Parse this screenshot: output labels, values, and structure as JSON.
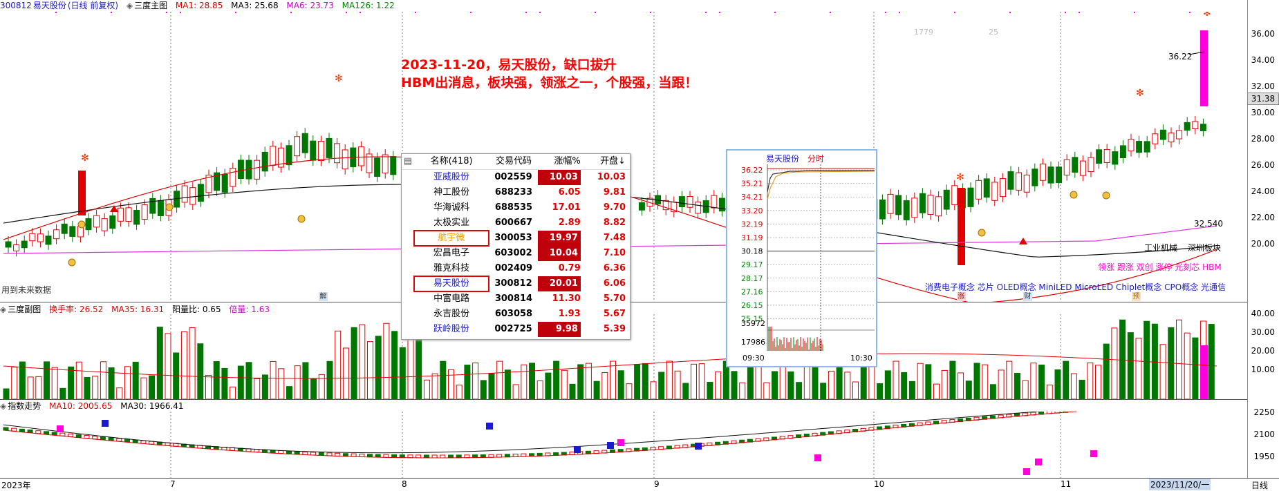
{
  "header": {
    "code": "300812",
    "name": "易天股份",
    "mode": "(日线 前复权)",
    "main_label": "三度主图",
    "ma1": "MA1: 28.85",
    "ma3": "MA3: 25.68",
    "ma6": "MA6: 23.73",
    "ma126": "MA126: 1.22"
  },
  "main_axis": [
    "36.00",
    "34.00",
    "32.00",
    "30.00",
    "28.00",
    "26.00",
    "24.00",
    "22.00",
    "20.00"
  ],
  "price_tag": "31.38",
  "price_high": "36.22",
  "ma_value": "32.540",
  "tiny_labels": [
    "1779",
    "25"
  ],
  "annotation": {
    "line1": "2023-11-20，易天股份，缺口拔升",
    "line2": "HBM出消息，板块强，领涨之一，个股强，当跟！"
  },
  "future_text": "用到未来数据",
  "sector": {
    "industry": "工业机械",
    "board": "深圳板块",
    "tags": "领涨 跟涨 双创 涨停 光刻芯 HBM",
    "concepts": "消费电子概念 芯片 OLED概念 MiniLED MicroLED Chiplet概念 CPO概念 光通信"
  },
  "markers": [
    "解",
    "涨",
    "财",
    "预"
  ],
  "sub_panel": {
    "label": "三度副图",
    "turnover": "换手率: 26.52",
    "ma35": "MA35: 16.31",
    "yang": "阳量比: 0.65",
    "bei": "倍量: 1.63",
    "axis": [
      "40.00",
      "30.00",
      "20.00",
      "10.00"
    ]
  },
  "index_panel": {
    "label": "指数走势",
    "ma10": "MA10: 2005.65",
    "ma30": "MA30: 1966.41",
    "axis": [
      "2250",
      "2100",
      "1950"
    ]
  },
  "time_axis": {
    "labels": [
      "2023年",
      "7",
      "8",
      "9",
      "10",
      "11"
    ],
    "current": "2023/11/20/一",
    "period": "日线"
  },
  "stock_list": {
    "headers": [
      "名称(418)",
      "交易代码",
      "涨幅%",
      "开盘↓"
    ],
    "rows": [
      {
        "name": "亚威股份",
        "code": "002559",
        "chg": "10.03",
        "open": "10.03",
        "color": "#1a1acc",
        "boxed": true,
        "hl": false
      },
      {
        "name": "神工股份",
        "code": "688233",
        "chg": "6.05",
        "open": "9.81",
        "color": "#000",
        "boxed": false,
        "hl": false
      },
      {
        "name": "华海诚科",
        "code": "688535",
        "chg": "17.01",
        "open": "9.70",
        "color": "#000",
        "boxed": false,
        "hl": false
      },
      {
        "name": "太极实业",
        "code": "600667",
        "chg": "2.89",
        "open": "8.82",
        "color": "#000",
        "boxed": false,
        "hl": false
      },
      {
        "name": "航宇微",
        "code": "300053",
        "chg": "19.97",
        "open": "7.48",
        "color": "#e8a000",
        "boxed": true,
        "hl": true
      },
      {
        "name": "宏昌电子",
        "code": "603002",
        "chg": "10.04",
        "open": "7.10",
        "color": "#000",
        "boxed": true,
        "hl": false
      },
      {
        "name": "雅克科技",
        "code": "002409",
        "chg": "0.79",
        "open": "6.36",
        "color": "#000",
        "boxed": false,
        "hl": false
      },
      {
        "name": "易天股份",
        "code": "300812",
        "chg": "20.01",
        "open": "6.06",
        "color": "#1a1acc",
        "boxed": true,
        "hl": true
      },
      {
        "name": "中富电路",
        "code": "300814",
        "chg": "11.30",
        "open": "5.70",
        "color": "#000",
        "boxed": false,
        "hl": false
      },
      {
        "name": "永吉股份",
        "code": "603058",
        "chg": "1.93",
        "open": "5.67",
        "color": "#000",
        "boxed": false,
        "hl": false
      },
      {
        "name": "跃岭股份",
        "code": "002725",
        "chg": "9.98",
        "open": "5.39",
        "color": "#1a1acc",
        "boxed": true,
        "hl": false
      }
    ]
  },
  "intraday": {
    "title": "易天股份",
    "title2": "分时",
    "price_ticks": [
      "36.22",
      "35.21",
      "34.21",
      "33.20",
      "32.19",
      "31.19",
      "30.18",
      "29.17",
      "28.17",
      "27.16",
      "26.15",
      "25.15"
    ],
    "vol_ticks": [
      "35972",
      "17986"
    ],
    "time_start": "09:30",
    "time_end": "10:30"
  }
}
